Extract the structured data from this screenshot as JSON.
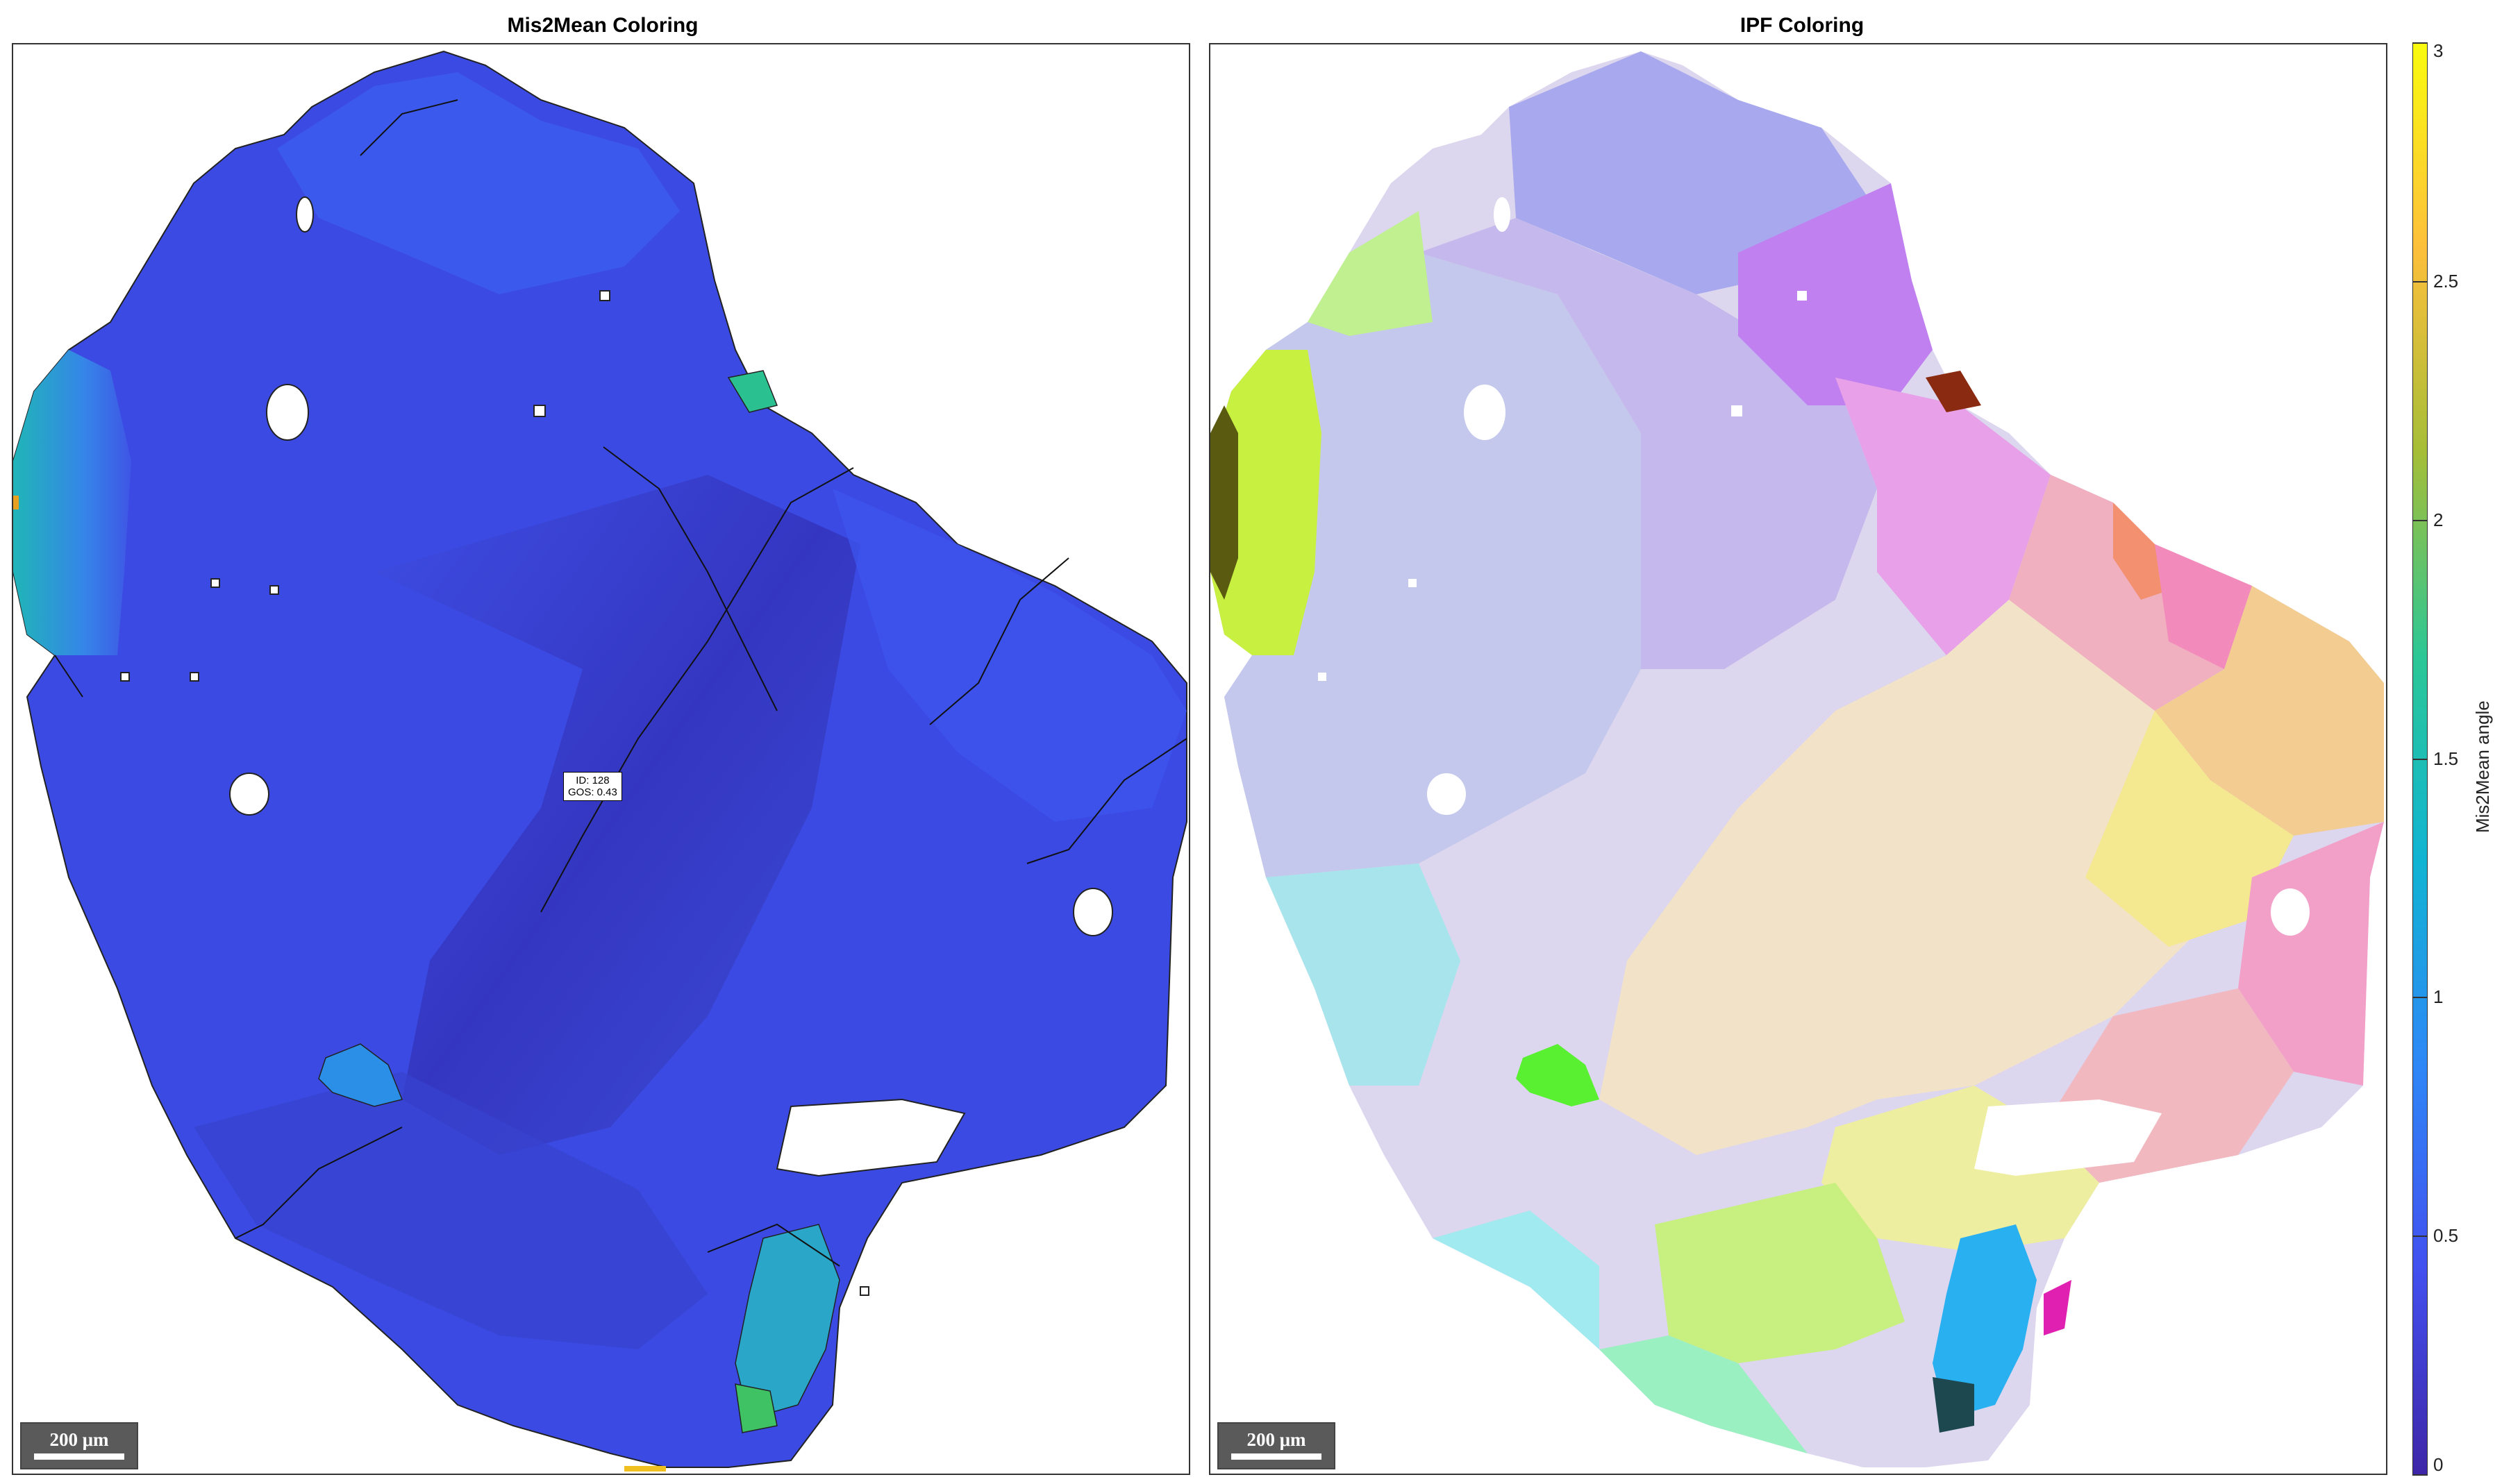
{
  "panels": {
    "left": {
      "title": "Mis2Mean Coloring"
    },
    "right": {
      "title": "IPF Coloring"
    }
  },
  "scalebar": {
    "label": "200 μm"
  },
  "tooltip": {
    "line1": "ID: 128",
    "line2": "GOS: 0.43"
  },
  "chart_data": {
    "type": "heatmap",
    "colorbar": {
      "label": "Mis2Mean angle",
      "range": [
        0,
        3
      ],
      "ticks": [
        "0",
        "0.5",
        "1",
        "1.5",
        "2",
        "2.5",
        "3"
      ],
      "colormap": [
        "#3e26a8",
        "#4250ef",
        "#2e87f7",
        "#10b4d3",
        "#2bc796",
        "#a5be37",
        "#fdbf3b",
        "#f9fb0e"
      ]
    },
    "selected_grain": {
      "id": 128,
      "gos": 0.43
    }
  },
  "colors": {
    "mis2mean_base": "#3b49e0",
    "mis2mean_dark": "#3430b8",
    "ipf_pale": "#dcd6ee"
  }
}
